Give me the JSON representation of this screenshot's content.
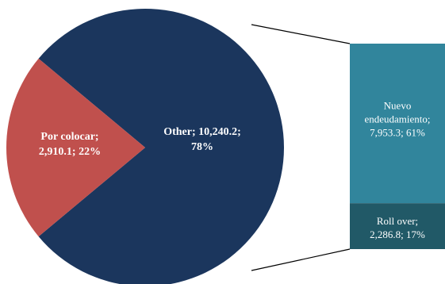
{
  "chart_data": {
    "type": "pie",
    "variant": "pie-of-pie-bar",
    "main_pie": [
      {
        "name": "Other",
        "value": 10240.2,
        "percent": 78,
        "label": [
          "Other; 10,240.2;",
          "78%"
        ],
        "color": "#1b365d"
      },
      {
        "name": "Por colocar",
        "value": 2910.1,
        "percent": 22,
        "label": [
          "Por colocar;",
          "2,910.1; 22%"
        ],
        "color": "#c0504d"
      }
    ],
    "bar_breakdown": [
      {
        "name": "Nuevo endeudamiento",
        "value": 7953.3,
        "percent": 61,
        "label": [
          "Nuevo",
          "endeudamiento;",
          "7,953.3; 61%"
        ],
        "color": "#31859c"
      },
      {
        "name": "Roll over",
        "value": 2286.8,
        "percent": 17,
        "label": [
          "Roll over;",
          "2,286.8; 17%"
        ],
        "color": "#215967"
      }
    ],
    "title": "",
    "legend": "none"
  }
}
